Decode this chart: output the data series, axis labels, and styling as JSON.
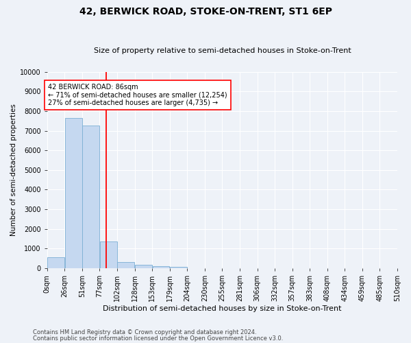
{
  "title": "42, BERWICK ROAD, STOKE-ON-TRENT, ST1 6EP",
  "subtitle": "Size of property relative to semi-detached houses in Stoke-on-Trent",
  "xlabel": "Distribution of semi-detached houses by size in Stoke-on-Trent",
  "ylabel": "Number of semi-detached properties",
  "bar_labels": [
    "0sqm",
    "26sqm",
    "51sqm",
    "77sqm",
    "102sqm",
    "128sqm",
    "153sqm",
    "179sqm",
    "204sqm",
    "230sqm",
    "255sqm",
    "281sqm",
    "306sqm",
    "332sqm",
    "357sqm",
    "383sqm",
    "408sqm",
    "434sqm",
    "459sqm",
    "485sqm",
    "510sqm"
  ],
  "bar_values": [
    560,
    7650,
    7270,
    1350,
    320,
    160,
    100,
    80,
    0,
    0,
    0,
    0,
    0,
    0,
    0,
    0,
    0,
    0,
    0,
    0
  ],
  "bar_color": "#c5d8f0",
  "bar_edgecolor": "#7bafd4",
  "property_label": "42 BERWICK ROAD: 86sqm",
  "pct_smaller": 71,
  "pct_smaller_n": "12,254",
  "pct_larger": 27,
  "pct_larger_n": "4,735",
  "vline_x_bin": 3,
  "vline_color": "red",
  "ylim": [
    0,
    10000
  ],
  "yticks": [
    0,
    1000,
    2000,
    3000,
    4000,
    5000,
    6000,
    7000,
    8000,
    9000,
    10000
  ],
  "ytick_labels": [
    "0",
    "1000",
    "2000",
    "3000",
    "4000",
    "5000",
    "6000",
    "7000",
    "8000",
    "9000",
    "10000"
  ],
  "footnote1": "Contains HM Land Registry data © Crown copyright and database right 2024.",
  "footnote2": "Contains public sector information licensed under the Open Government Licence v3.0.",
  "bg_color": "#eef2f8",
  "grid_color": "#ffffff",
  "title_fontsize": 10,
  "subtitle_fontsize": 8,
  "xlabel_fontsize": 8,
  "ylabel_fontsize": 7.5,
  "tick_fontsize": 7,
  "footnote_fontsize": 6
}
